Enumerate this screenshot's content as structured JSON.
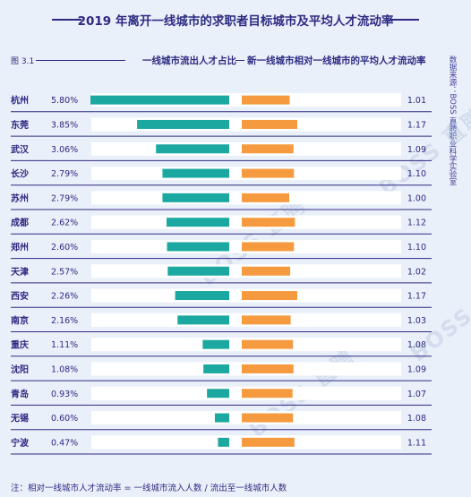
{
  "title": "2019 年离开一线城市的求职者目标城市及平均人才流动率",
  "figure_label": "图 3.1",
  "source": "数据来源：BOSS 直聘职业科学实验室",
  "watermark": "BOSS 直聘",
  "note": "注：相对一线城市人才流动率 = 一线城市流入人数 / 流出至一线城市人数",
  "colors": {
    "left_bar": "#1ba8a0",
    "right_bar": "#f59a3f",
    "title": "#2c2a82",
    "row_bg": "#ffffff",
    "row_line": "#2c2a82",
    "background": "#eaf0f9"
  },
  "chart_data": {
    "type": "bar",
    "categories": [
      "杭州",
      "东莞",
      "武汉",
      "长沙",
      "苏州",
      "成都",
      "郑州",
      "天津",
      "西安",
      "南京",
      "重庆",
      "沈阳",
      "青岛",
      "无锡",
      "宁波"
    ],
    "series": [
      {
        "name": "一线城市流出人才占比",
        "labels": [
          "5.80%",
          "3.85%",
          "3.06%",
          "2.79%",
          "2.79%",
          "2.62%",
          "2.60%",
          "2.57%",
          "2.26%",
          "2.16%",
          "1.11%",
          "1.08%",
          "0.93%",
          "0.60%",
          "0.47%"
        ],
        "values": [
          5.8,
          3.85,
          3.06,
          2.79,
          2.79,
          2.62,
          2.6,
          2.57,
          2.26,
          2.16,
          1.11,
          1.08,
          0.93,
          0.6,
          0.47
        ]
      },
      {
        "name": "新一线城市相对一线城市的平均人才流动率",
        "labels": [
          "1.01",
          "1.17",
          "1.09",
          "1.10",
          "1.00",
          "1.12",
          "1.10",
          "1.02",
          "1.17",
          "1.03",
          "1.08",
          "1.09",
          "1.07",
          "1.08",
          "1.11"
        ],
        "values": [
          1.01,
          1.17,
          1.09,
          1.1,
          1.0,
          1.12,
          1.1,
          1.02,
          1.17,
          1.03,
          1.08,
          1.09,
          1.07,
          1.08,
          1.11
        ]
      }
    ],
    "grid": false,
    "legend": "top"
  }
}
